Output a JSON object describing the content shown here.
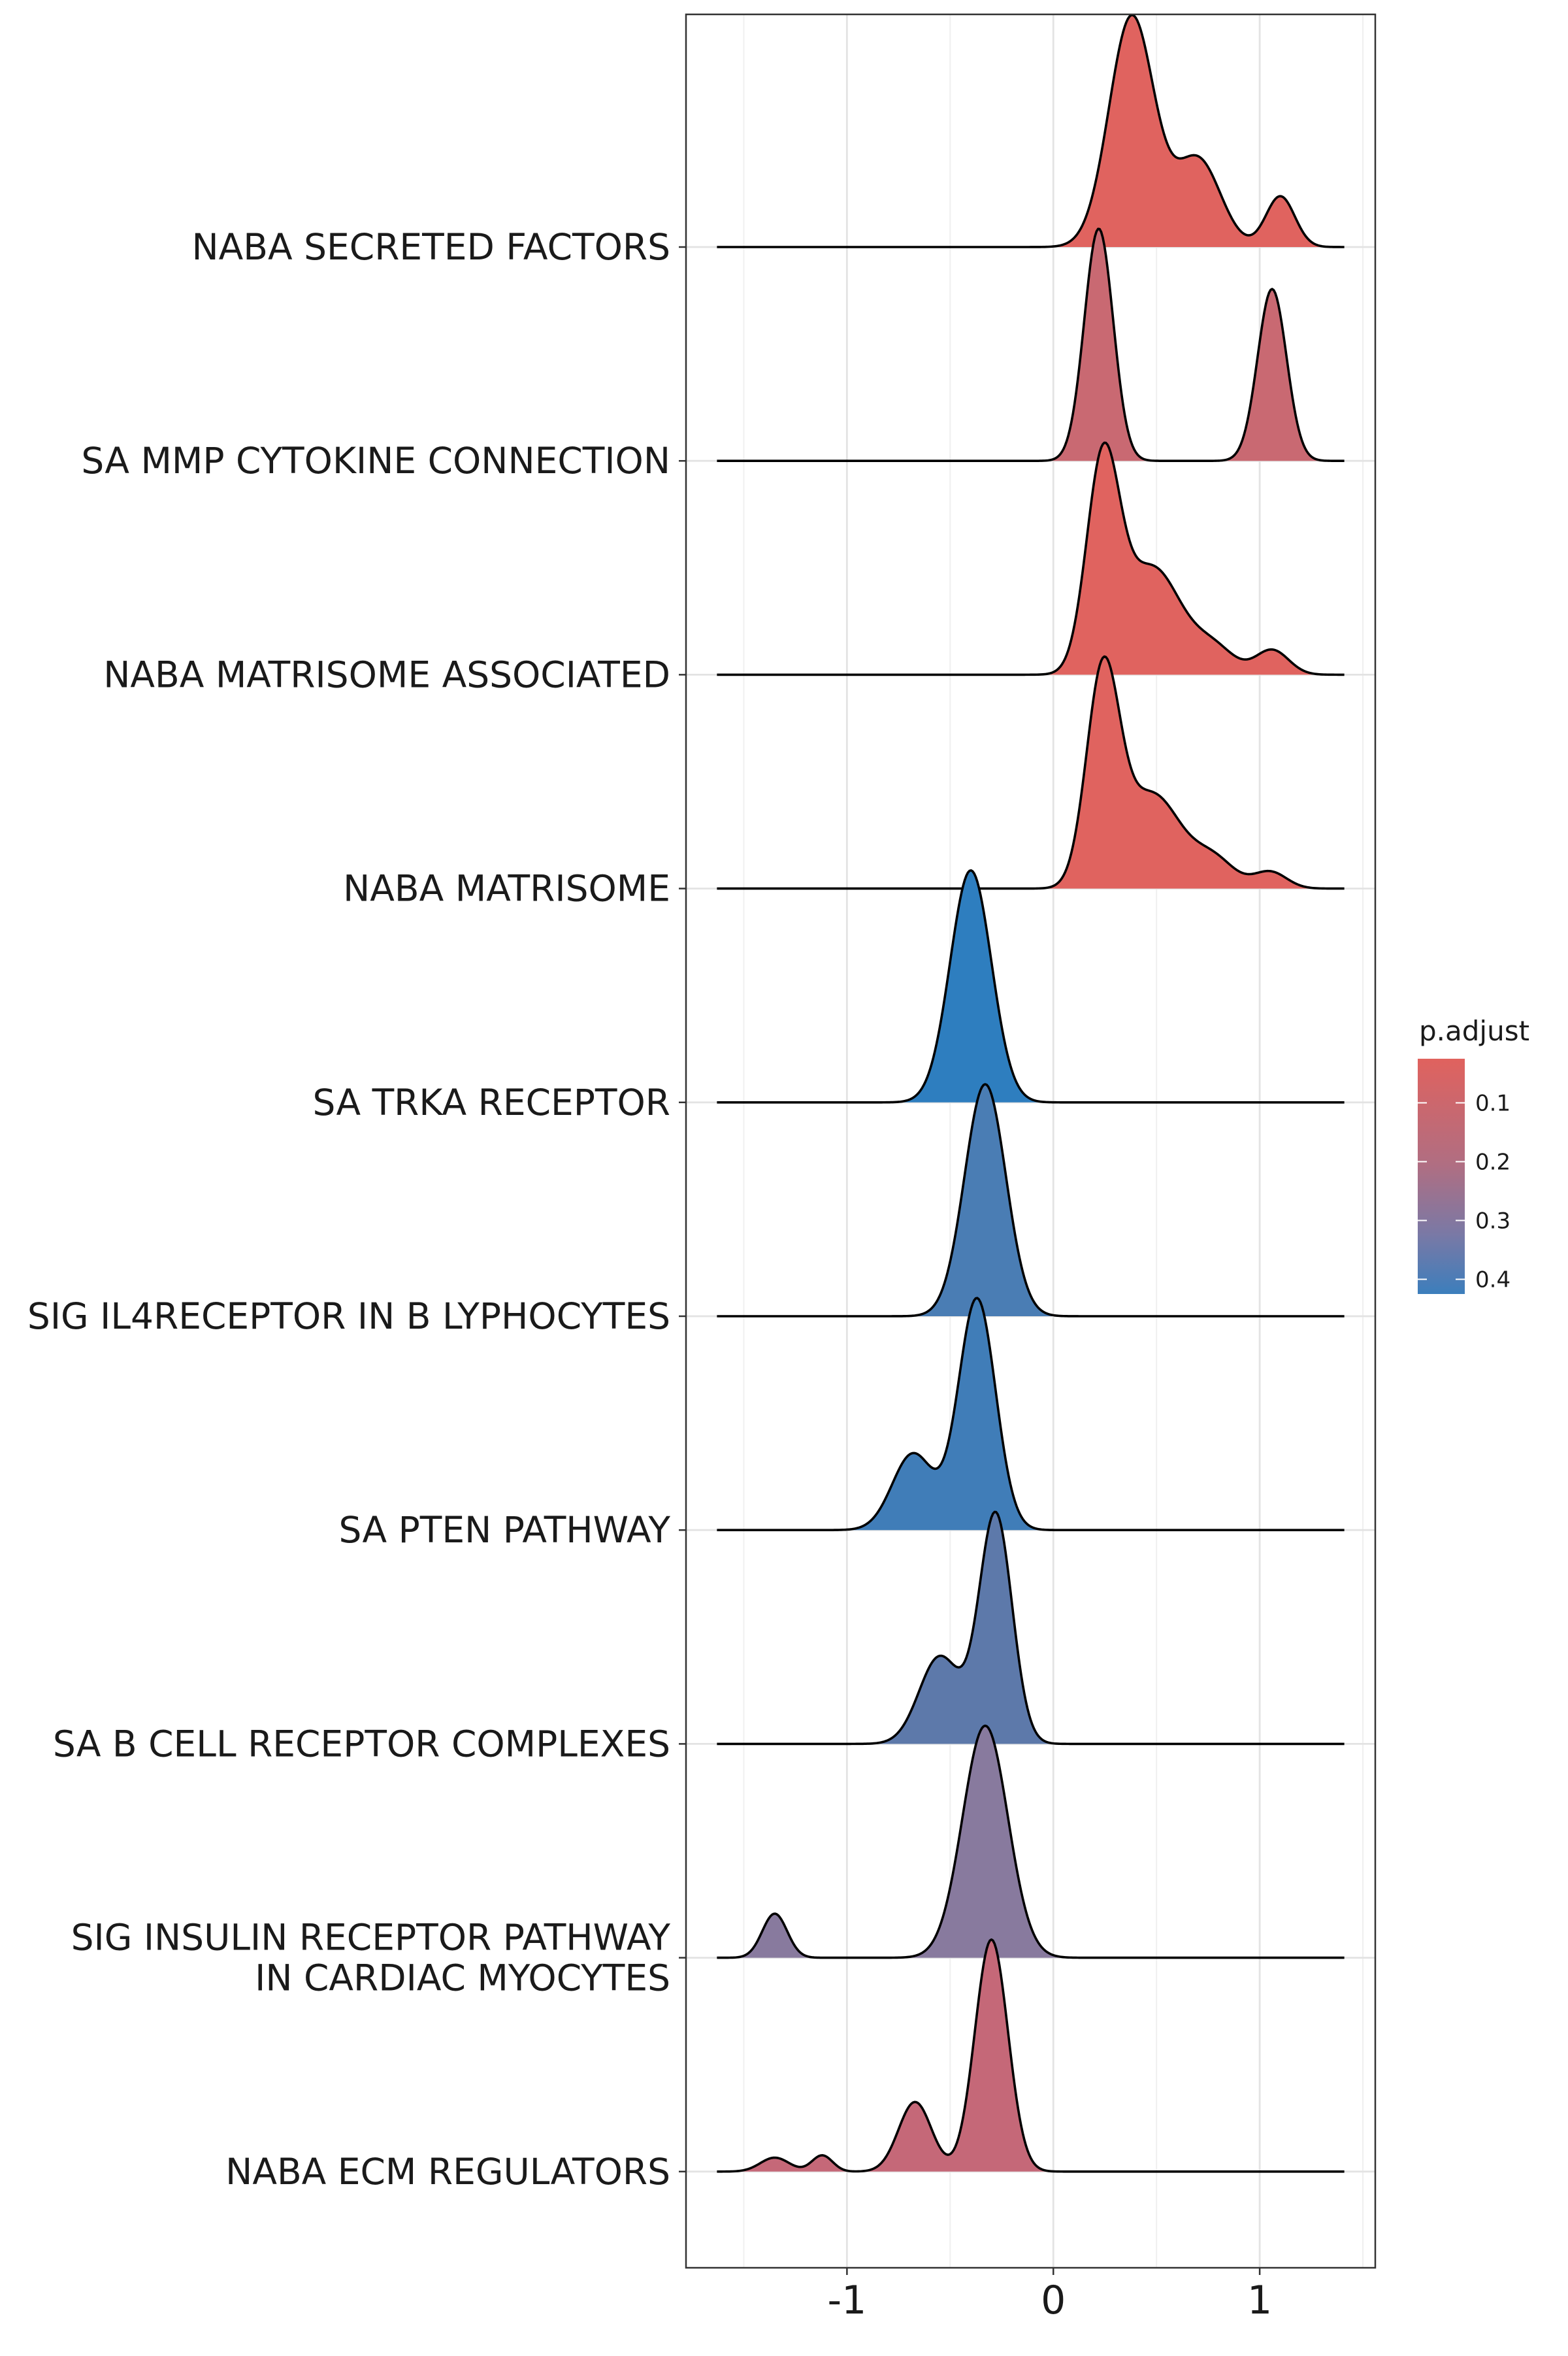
{
  "chart_data": {
    "type": "ridgeline",
    "title": "",
    "xlabel": "",
    "ylabel": "",
    "xlim": [
      -1.78,
      1.56
    ],
    "x_ticks": [
      -1,
      0,
      1
    ],
    "x_tick_labels": [
      "-1",
      "0",
      "1"
    ],
    "grid": true,
    "legend": {
      "title": "p.adjust",
      "placement": "right",
      "ticks": [
        0.1,
        0.2,
        0.3,
        0.4
      ],
      "tick_labels": [
        "0.1",
        "0.2",
        "0.3",
        "0.4"
      ],
      "range": [
        0.025,
        0.425
      ],
      "low_color": "#E0625E",
      "high_color": "#3C7EBC"
    },
    "density_x_range": [
      -1.63,
      1.41
    ],
    "series": [
      {
        "label": "NABA SECRETED FACTORS",
        "p_adjust": 0.03,
        "color": "#E0635F",
        "components": [
          [
            0.38,
            0.11,
            1.0
          ],
          [
            0.7,
            0.11,
            0.38
          ],
          [
            1.1,
            0.07,
            0.22
          ]
        ]
      },
      {
        "label": "SA MMP CYTOKINE CONNECTION",
        "p_adjust": 0.14,
        "color": "#C96972",
        "components": [
          [
            0.22,
            0.07,
            1.0
          ],
          [
            1.06,
            0.07,
            0.74
          ]
        ]
      },
      {
        "label": "NABA MATRISOME ASSOCIATED",
        "p_adjust": 0.03,
        "color": "#E0635F",
        "components": [
          [
            0.24,
            0.08,
            1.0
          ],
          [
            0.48,
            0.14,
            0.52
          ],
          [
            0.78,
            0.1,
            0.12
          ],
          [
            1.06,
            0.08,
            0.12
          ]
        ]
      },
      {
        "label": "NABA MATRISOME",
        "p_adjust": 0.03,
        "color": "#E0635F",
        "components": [
          [
            0.24,
            0.08,
            1.0
          ],
          [
            0.48,
            0.14,
            0.45
          ],
          [
            0.78,
            0.1,
            0.13
          ],
          [
            1.05,
            0.08,
            0.08
          ]
        ]
      },
      {
        "label": "SA TRKA RECEPTOR",
        "p_adjust": 0.42,
        "color": "#2E7EBF",
        "components": [
          [
            -0.4,
            0.1,
            1.0
          ]
        ]
      },
      {
        "label": "SIG IL4RECEPTOR IN B LYPHOCYTES",
        "p_adjust": 0.38,
        "color": "#4A7DB4",
        "components": [
          [
            -0.33,
            0.1,
            1.0
          ]
        ]
      },
      {
        "label": "SA PTEN PATHWAY",
        "p_adjust": 0.39,
        "color": "#407DB8",
        "components": [
          [
            -0.37,
            0.09,
            1.0
          ],
          [
            -0.68,
            0.1,
            0.33
          ]
        ]
      },
      {
        "label": "SA B CELL RECEPTOR COMPLEXES",
        "p_adjust": 0.35,
        "color": "#5D79AA",
        "components": [
          [
            -0.28,
            0.08,
            1.0
          ],
          [
            -0.55,
            0.1,
            0.38
          ]
        ]
      },
      {
        "label": "SIG INSULIN RECEPTOR PATHWAY IN CARDIAC MYOCYTES",
        "label_lines": [
          "SIG INSULIN RECEPTOR PATHWAY",
          "IN CARDIAC MYOCYTES"
        ],
        "p_adjust": 0.28,
        "color": "#887A9E",
        "components": [
          [
            -0.33,
            0.11,
            1.0
          ],
          [
            -1.35,
            0.06,
            0.19
          ]
        ]
      },
      {
        "label": "NABA ECM REGULATORS",
        "p_adjust": 0.16,
        "color": "#C56878",
        "components": [
          [
            -0.3,
            0.08,
            1.0
          ],
          [
            -0.67,
            0.08,
            0.3
          ],
          [
            -1.35,
            0.07,
            0.06
          ],
          [
            -1.12,
            0.05,
            0.07
          ]
        ]
      }
    ]
  }
}
